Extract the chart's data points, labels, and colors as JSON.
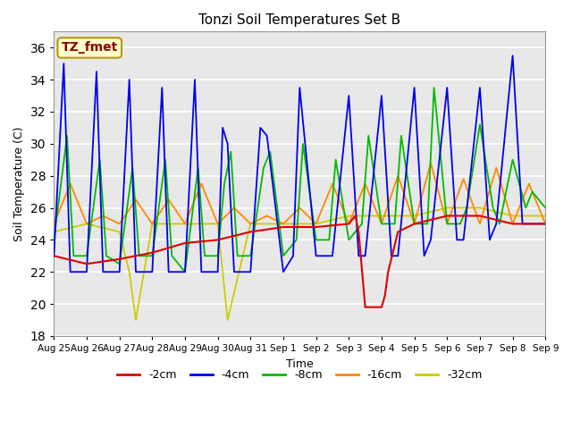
{
  "title": "Tonzi Soil Temperatures Set B",
  "xlabel": "Time",
  "ylabel": "Soil Temperature (C)",
  "ylim": [
    18,
    37
  ],
  "background_color": "#e8e8e8",
  "annotation_text": "TZ_fmet",
  "annotation_color": "#8b0000",
  "annotation_bg": "#ffffcc",
  "annotation_border": "#b8960c",
  "xtick_labels": [
    "Aug 25",
    "Aug 26",
    "Aug 27",
    "Aug 28",
    "Aug 29",
    "Aug 30",
    "Aug 31",
    "Sep 1",
    "Sep 2",
    "Sep 3",
    "Sep 4",
    "Sep 5",
    "Sep 6",
    "Sep 7",
    "Sep 8",
    "Sep 9"
  ],
  "legend_labels": [
    "-2cm",
    "-4cm",
    "-8cm",
    "-16cm",
    "-32cm"
  ],
  "legend_colors": [
    "#dd0000",
    "#0000ee",
    "#00bb00",
    "#ff8800",
    "#cccc00"
  ],
  "neg4cm_x": [
    0,
    0.3,
    0.5,
    1,
    1.3,
    1.5,
    2,
    2.3,
    2.5,
    3,
    3.3,
    3.5,
    4,
    4.3,
    4.5,
    5,
    5.15,
    5.3,
    5.5,
    6,
    6.3,
    6.5,
    7,
    7.3,
    7.5,
    8,
    8.3,
    8.5,
    9,
    9.3,
    9.5,
    10,
    10.3,
    10.5,
    11,
    11.3,
    11.5,
    12,
    12.3,
    12.5,
    13,
    13.3,
    13.5,
    14,
    14.3,
    14.5,
    15
  ],
  "neg4cm_y": [
    23,
    35,
    22,
    22,
    34.5,
    22,
    22,
    34,
    22,
    22,
    33.5,
    22,
    22,
    34,
    22,
    22,
    31,
    30,
    22,
    22,
    31,
    30.5,
    22,
    23,
    33.5,
    23,
    23,
    23,
    33,
    23,
    23,
    33,
    23,
    23,
    33.5,
    23,
    24,
    33.5,
    24,
    24,
    33.5,
    24,
    25,
    35.5,
    25,
    25,
    25
  ],
  "neg8cm_x": [
    0,
    0.4,
    0.6,
    1,
    1.4,
    1.6,
    2,
    2.4,
    2.6,
    3,
    3.4,
    3.6,
    4,
    4.4,
    4.6,
    5,
    5.2,
    5.4,
    5.6,
    6,
    6.4,
    6.6,
    7,
    7.4,
    7.6,
    8,
    8.4,
    8.6,
    9,
    9.4,
    9.6,
    10,
    10.4,
    10.6,
    11,
    11.4,
    11.6,
    12,
    12.4,
    12.6,
    13,
    13.4,
    13.6,
    14,
    14.4,
    14.6,
    15
  ],
  "neg8cm_y": [
    24,
    30.5,
    23,
    23,
    29,
    23,
    22.5,
    28.5,
    23,
    23,
    29,
    23,
    22,
    28.5,
    23,
    23,
    27.5,
    29.5,
    23,
    23,
    28.5,
    29.5,
    23,
    24,
    30,
    24,
    24,
    29,
    24,
    25,
    30.5,
    25,
    25,
    30.5,
    25,
    25,
    33.5,
    25,
    25,
    26,
    31.2,
    26,
    25,
    29,
    26,
    27,
    26
  ],
  "neg16cm_x": [
    0,
    0.5,
    1,
    1.5,
    2,
    2.5,
    3,
    3.5,
    4,
    4.5,
    5,
    5.5,
    6,
    6.5,
    7,
    7.5,
    8,
    8.5,
    9,
    9.5,
    10,
    10.5,
    11,
    11.5,
    12,
    12.5,
    13,
    13.5,
    14,
    14.5,
    15
  ],
  "neg16cm_y": [
    25,
    27.5,
    25,
    25.5,
    25,
    26.5,
    25,
    26.5,
    25,
    27.5,
    25,
    26,
    25,
    25.5,
    25,
    26,
    25,
    27.5,
    25,
    27.5,
    25,
    28,
    25,
    28.8,
    25,
    27.8,
    25,
    28.5,
    25,
    27.5,
    25
  ],
  "neg32cm_x": [
    0,
    1,
    2,
    2.3,
    2.5,
    3,
    4,
    5,
    5.1,
    5.2,
    5.3,
    6,
    7,
    8,
    9,
    10,
    11,
    12,
    13,
    14,
    15
  ],
  "neg32cm_y": [
    24.5,
    25,
    24.5,
    22,
    19,
    25,
    25,
    25,
    23,
    21,
    19,
    25,
    25,
    25,
    25.5,
    25.5,
    25.5,
    26,
    26,
    25.5,
    25.5
  ],
  "neg2cm_x": [
    0,
    1,
    2,
    3,
    4,
    5,
    6,
    7,
    8,
    9,
    9.2,
    9.3,
    9.5,
    10,
    10.1,
    10.2,
    10.5,
    11,
    12,
    13,
    14,
    15
  ],
  "neg2cm_y": [
    23,
    22.5,
    22.8,
    23.2,
    23.8,
    24.0,
    24.5,
    24.8,
    24.8,
    25.0,
    25.5,
    24.5,
    19.8,
    19.8,
    20.5,
    22.0,
    24.5,
    25.0,
    25.5,
    25.5,
    25.0,
    25.0
  ]
}
